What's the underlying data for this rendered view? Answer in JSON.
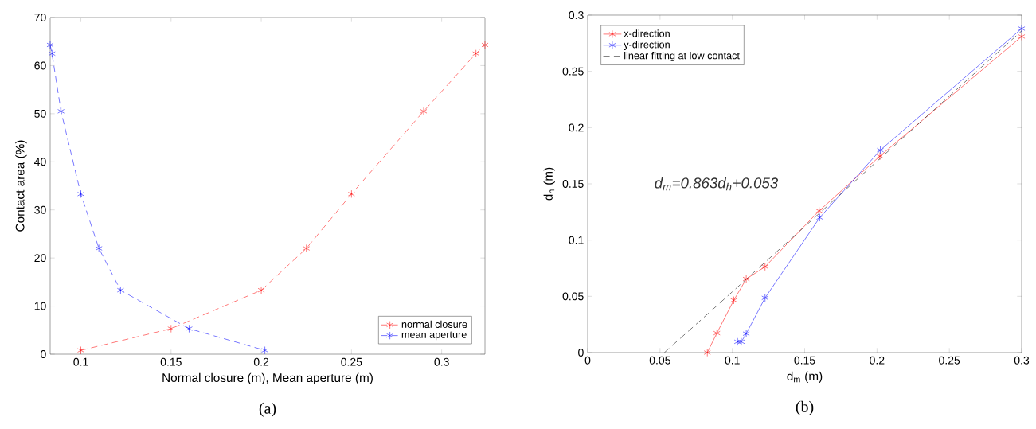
{
  "chart_data": [
    {
      "type": "line",
      "xlabel": "Normal closure (m), Mean aperture (m)",
      "ylabel": "Contact area (%)",
      "xlim": [
        0.083,
        0.324
      ],
      "ylim": [
        0,
        70
      ],
      "xticks": [
        0.1,
        0.15,
        0.2,
        0.25,
        0.3
      ],
      "yticks": [
        0,
        10,
        20,
        30,
        40,
        50,
        60,
        70
      ],
      "legend": "bottom right",
      "marker": "cross",
      "line_style": "dashed",
      "series": [
        {
          "name": "normal closure",
          "color": "#ff0000",
          "x": [
            0.1,
            0.15,
            0.2,
            0.225,
            0.25,
            0.29,
            0.319,
            0.324
          ],
          "values": [
            0.8,
            5.3,
            13.3,
            22,
            33.3,
            50.5,
            62.5,
            64.3
          ]
        },
        {
          "name": "mean aperture",
          "color": "#0000ff",
          "x": [
            0.083,
            0.084,
            0.089,
            0.1,
            0.11,
            0.122,
            0.16,
            0.202
          ],
          "values": [
            64.3,
            62.5,
            50.5,
            33.3,
            22,
            13.3,
            5.3,
            0.8
          ]
        }
      ],
      "annotations": [
        "(a)"
      ]
    },
    {
      "type": "line",
      "xlabel": "d$_{m}$ (m)",
      "ylabel": "d$_{h}$ (m)",
      "xlim": [
        0,
        0.3
      ],
      "ylim": [
        0,
        0.3
      ],
      "xticks": [
        0,
        0.05,
        0.1,
        0.15,
        0.2,
        0.25,
        0.3
      ],
      "yticks": [
        0,
        0.05,
        0.1,
        0.15,
        0.2,
        0.25,
        0.3
      ],
      "legend": "top left",
      "marker": "cross",
      "line_style": "solid",
      "series": [
        {
          "name": "x-direction",
          "color": "#ff0000",
          "x": [
            0.0827,
            0.0893,
            0.101,
            0.1096,
            0.1226,
            0.16,
            0.202,
            0.3
          ],
          "values": [
            0,
            0.0173,
            0.0465,
            0.0654,
            0.0763,
            0.126,
            0.1746,
            0.281
          ]
        },
        {
          "name": "y-direction",
          "color": "#0000ff",
          "x": [
            0.1036,
            0.1062,
            0.1096,
            0.1226,
            0.1604,
            0.2023,
            0.3
          ],
          "values": [
            0.0096,
            0.0096,
            0.0168,
            0.0486,
            0.12,
            0.18,
            0.288
          ]
        },
        {
          "name": "linear fitting at low contact",
          "color": "#000000",
          "marker": "none",
          "line_style": "dashed",
          "x": [
            0.053,
            0.087,
            0.3
          ],
          "values": [
            0,
            0.039,
            0.286
          ]
        }
      ],
      "annotations": [
        "d$_{m}$=0.863d$_{h}$+0.053",
        "(b)"
      ]
    }
  ]
}
